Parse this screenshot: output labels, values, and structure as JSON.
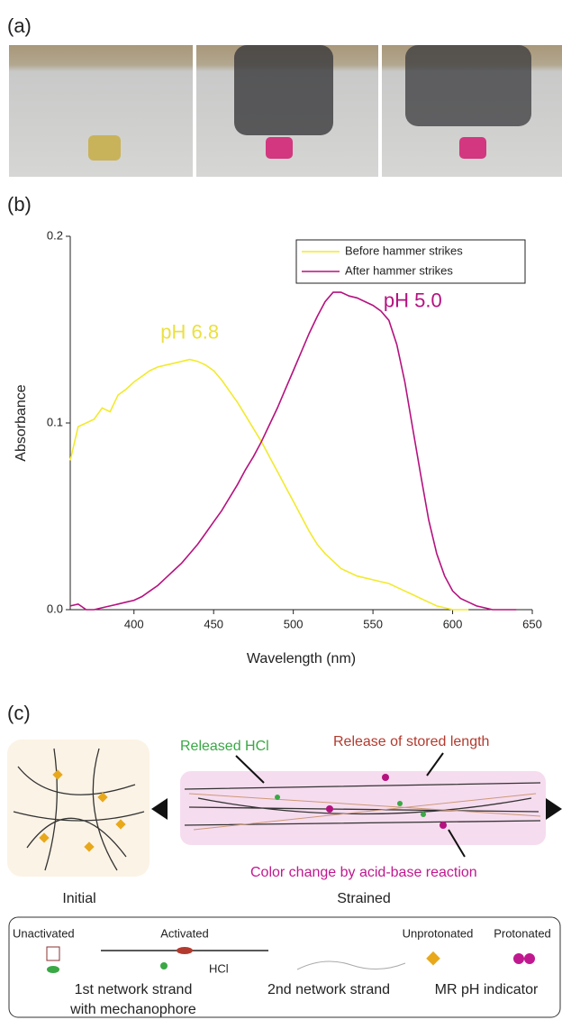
{
  "panels": {
    "a": "(a)",
    "b": "(b)",
    "c": "(c)"
  },
  "chart_data": {
    "type": "line",
    "x_label": "Wavelength (nm)",
    "y_label": "Absorbance",
    "xlim": [
      360,
      650
    ],
    "ylim": [
      0,
      0.2
    ],
    "xticks": [
      400,
      450,
      500,
      550,
      600,
      650
    ],
    "yticks": [
      {
        "value": 0,
        "label": "0.0"
      },
      0.1,
      0.2
    ],
    "legend": "upper right",
    "x": [
      360,
      365,
      370,
      375,
      380,
      385,
      390,
      395,
      400,
      405,
      410,
      415,
      420,
      425,
      430,
      435,
      440,
      445,
      450,
      455,
      460,
      465,
      470,
      475,
      480,
      485,
      490,
      495,
      500,
      505,
      510,
      515,
      520,
      525,
      530,
      535,
      540,
      545,
      550,
      555,
      560,
      565,
      570,
      575,
      580,
      585,
      590,
      595,
      600,
      605,
      610,
      615,
      620,
      625,
      630,
      635,
      640
    ],
    "series": [
      {
        "name": "Before hammer strikes",
        "color": "#f2ea2e",
        "values": [
          0.08,
          0.098,
          0.1,
          0.102,
          0.108,
          0.106,
          0.115,
          0.118,
          0.122,
          0.125,
          0.128,
          0.13,
          0.131,
          0.132,
          0.133,
          0.134,
          0.133,
          0.131,
          0.128,
          0.123,
          0.117,
          0.111,
          0.104,
          0.097,
          0.09,
          0.082,
          0.074,
          0.066,
          0.058,
          0.05,
          0.042,
          0.035,
          0.03,
          0.026,
          0.022,
          0.02,
          0.018,
          0.017,
          0.016,
          0.015,
          0.014,
          0.012,
          0.01,
          0.008,
          0.006,
          0.004,
          0.002,
          0.001,
          0,
          0,
          0,
          null,
          null,
          null,
          null,
          null,
          null
        ]
      },
      {
        "name": "After hammer strikes",
        "color": "#b5127f",
        "values": [
          0.002,
          0.003,
          0,
          0,
          0.001,
          0.002,
          0.003,
          0.004,
          0.005,
          0.007,
          0.01,
          0.013,
          0.017,
          0.021,
          0.025,
          0.03,
          0.035,
          0.041,
          0.047,
          0.053,
          0.06,
          0.067,
          0.075,
          0.082,
          0.09,
          0.099,
          0.108,
          0.118,
          0.128,
          0.138,
          0.148,
          0.157,
          0.165,
          0.17,
          0.17,
          0.168,
          0.167,
          0.165,
          0.163,
          0.16,
          0.155,
          0.142,
          0.122,
          0.097,
          0.072,
          0.048,
          0.03,
          0.018,
          0.01,
          0.006,
          0.004,
          0.002,
          0.001,
          0,
          0,
          0,
          0
        ]
      }
    ],
    "annotations": [
      {
        "text": "pH 6.8",
        "color": "#ebe040"
      },
      {
        "text": "pH 5.0",
        "color": "#b5127f"
      }
    ]
  },
  "schematic": {
    "released": "Released HCl",
    "release_length": "Release of stored length",
    "color_change": "Color change by acid-base reaction",
    "initial": "Initial",
    "strained": "Strained",
    "legend": {
      "unactivated": "Unactivated",
      "activated": "Activated",
      "hcl": "HCl",
      "first_strand": [
        "1st network strand",
        "with mechanophore"
      ],
      "second_strand": "2nd network strand",
      "unprotonated": "Unprotonated",
      "protonated": "Protonated",
      "indicator": "MR pH indicator"
    }
  }
}
